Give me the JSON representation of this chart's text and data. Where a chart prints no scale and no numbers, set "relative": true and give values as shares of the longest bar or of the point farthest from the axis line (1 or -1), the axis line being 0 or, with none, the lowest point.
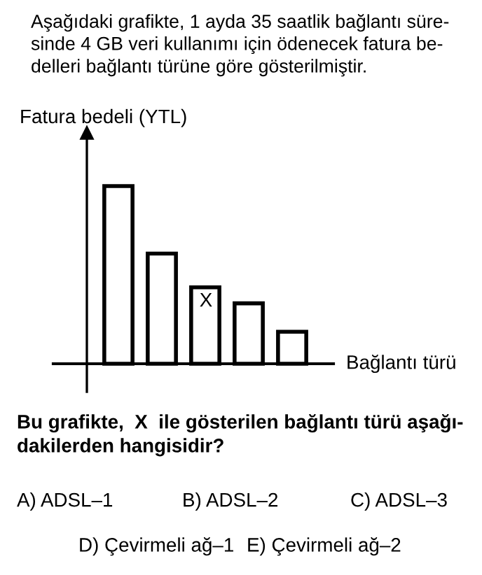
{
  "chart_data": {
    "type": "bar",
    "title": "Aşağıdaki grafikte, 1 ayda 35 saatlik bağlantı süre-\nsinde 4 GB veri kullanımı için ödenecek fatura be-\ndelleri bağlantı türüne göre gösterilmiştir.",
    "ylabel": "Fatura bedeli (YTL)",
    "xlabel": "Bağlantı türü",
    "relative": true,
    "categories": [
      null,
      null,
      null,
      null,
      null
    ],
    "values": [
      1,
      0.62,
      0.43,
      0.34,
      0.18
    ],
    "color": "#ffffff",
    "annotations": [
      "X",
      "Bu grafikte,  X  ile gösterilen bağlantı türü aşağı-\ndakilerden hangisidir?",
      "A) ADSL–1",
      "B) ADSL–2",
      "C) ADSL–3",
      "D) Çevirmeli ağ–1",
      "E) Çevirmeli ağ–2"
    ]
  }
}
